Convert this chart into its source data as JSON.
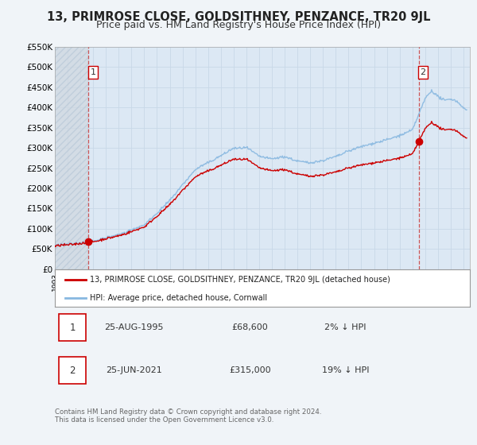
{
  "title": "13, PRIMROSE CLOSE, GOLDSITHNEY, PENZANCE, TR20 9JL",
  "subtitle": "Price paid vs. HM Land Registry's House Price Index (HPI)",
  "ylim": [
    0,
    550000
  ],
  "yticks": [
    0,
    50000,
    100000,
    150000,
    200000,
    250000,
    300000,
    350000,
    400000,
    450000,
    500000,
    550000
  ],
  "ytick_labels": [
    "£0",
    "£50K",
    "£100K",
    "£150K",
    "£200K",
    "£250K",
    "£300K",
    "£350K",
    "£400K",
    "£450K",
    "£500K",
    "£550K"
  ],
  "xlim_start": 1993.0,
  "xlim_end": 2025.5,
  "background_color": "#f0f4f8",
  "grid_color": "#c8d8e8",
  "plot_bg": "#dce8f4",
  "hatch_bg": "#d0d8e0",
  "sale1_x": 1995.646,
  "sale1_y": 68600,
  "sale2_x": 2021.486,
  "sale2_y": 315000,
  "marker_color": "#cc0000",
  "hpi_line_color": "#88b8e0",
  "price_line_color": "#cc0000",
  "vline_color": "#cc4444",
  "legend_label_price": "13, PRIMROSE CLOSE, GOLDSITHNEY, PENZANCE, TR20 9JL (detached house)",
  "legend_label_hpi": "HPI: Average price, detached house, Cornwall",
  "note1_label": "1",
  "note1_date": "25-AUG-1995",
  "note1_price": "£68,600",
  "note1_hpi": "2% ↓ HPI",
  "note2_label": "2",
  "note2_date": "25-JUN-2021",
  "note2_price": "£315,000",
  "note2_hpi": "19% ↓ HPI",
  "footer": "Contains HM Land Registry data © Crown copyright and database right 2024.\nThis data is licensed under the Open Government Licence v3.0.",
  "title_fontsize": 10.5,
  "subtitle_fontsize": 9
}
